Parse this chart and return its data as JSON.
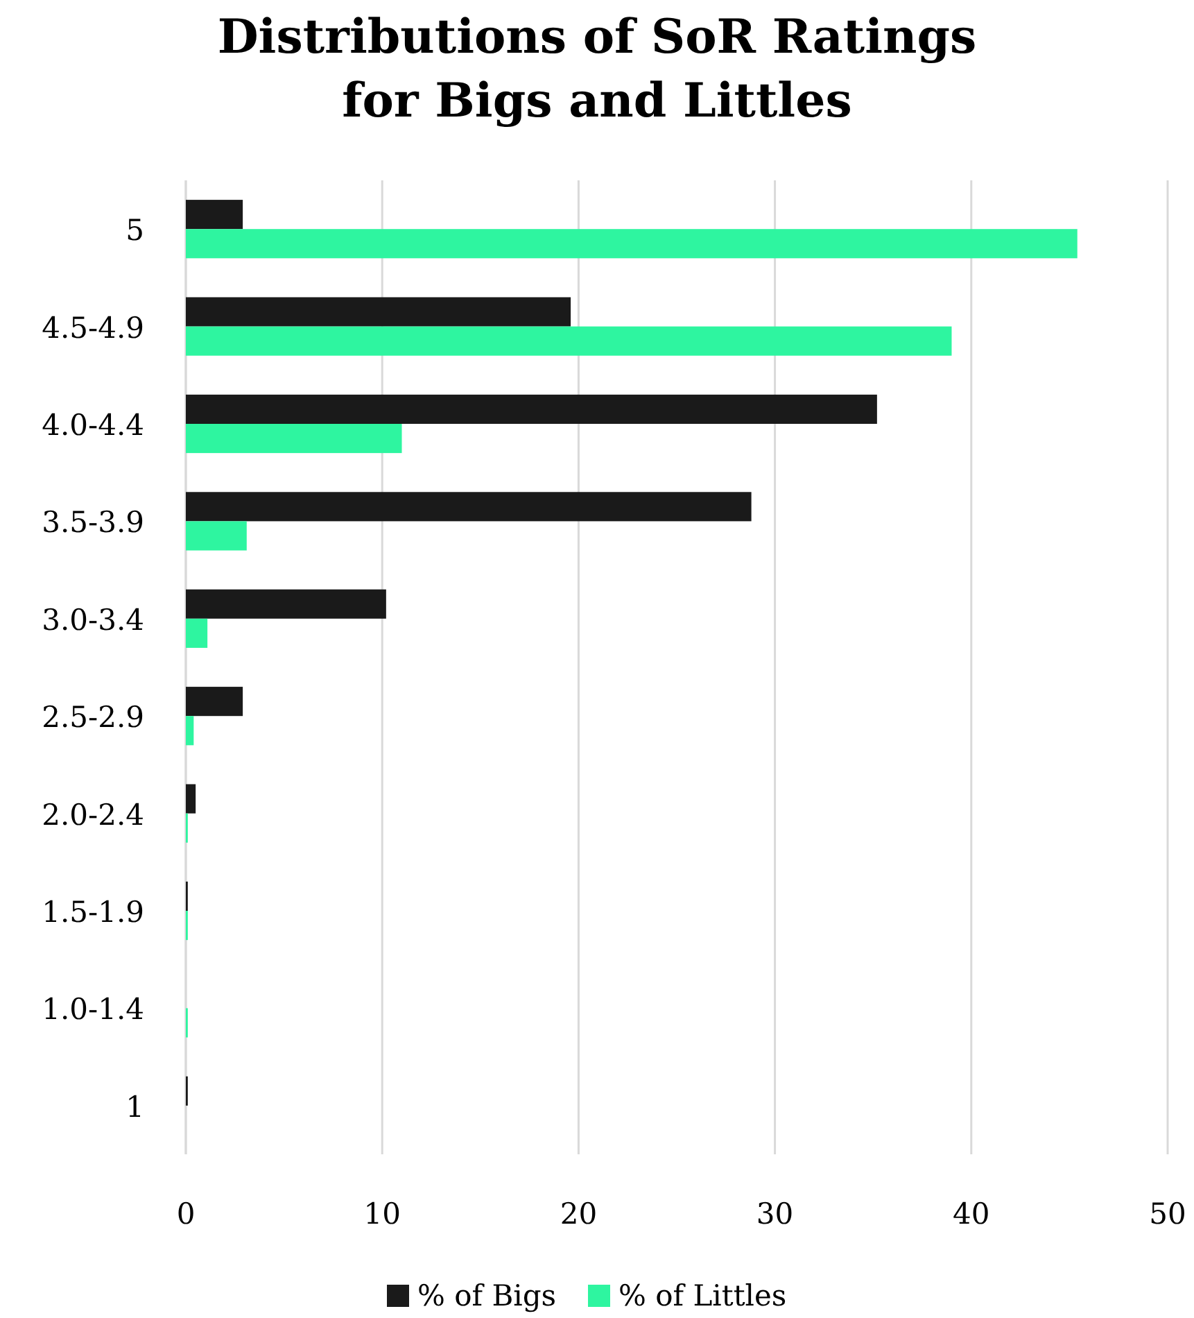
{
  "chart_data": {
    "type": "bar",
    "orientation": "horizontal",
    "title": "Distributions of SoR Ratings\nfor Bigs and Littles",
    "categories": [
      "5",
      "4.5-4.9",
      "4.0-4.4",
      "3.5-3.9",
      "3.0-3.4",
      "2.5-2.9",
      "2.0-2.4",
      "1.5-1.9",
      "1.0-1.4",
      "1"
    ],
    "series": [
      {
        "name": "% of Bigs",
        "color": "#1a1a1a",
        "values": [
          2.9,
          19.6,
          35.2,
          28.8,
          10.2,
          2.9,
          0.5,
          0.1,
          0,
          0.1
        ]
      },
      {
        "name": "% of Littles",
        "color": "#2ef5a0",
        "values": [
          45.4,
          39.0,
          11.0,
          3.1,
          1.1,
          0.4,
          0.1,
          0.1,
          0.1,
          0
        ]
      }
    ],
    "xlim": [
      0,
      50
    ],
    "xticks": [
      0,
      10,
      20,
      30,
      40,
      50
    ],
    "grid": "x",
    "legend": "bottom"
  }
}
